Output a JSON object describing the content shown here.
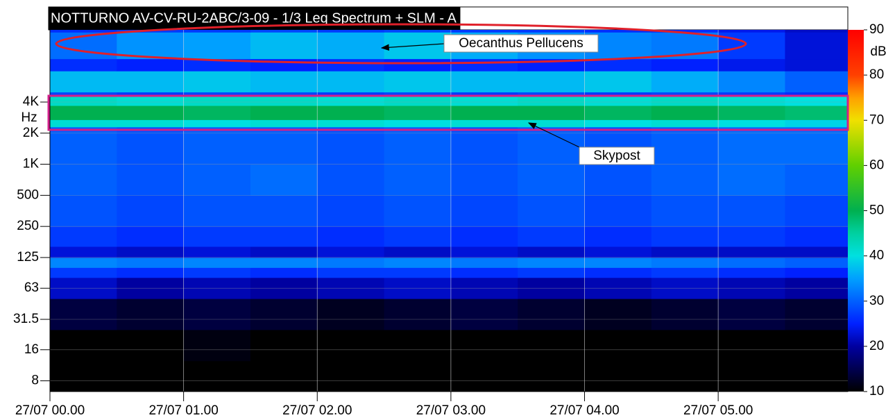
{
  "chart_data": {
    "type": "spectrogram",
    "title": "NOTTURNO AV-CV-RU-2ABC/3-09  - 1/3 Leq Spectrum + SLM - A",
    "y_label": "Hz",
    "colorbar_label": "dB",
    "y_scale": "log",
    "grid": true,
    "xlim": [
      0,
      5.97
    ],
    "xticks": [
      {
        "value": 0,
        "label": "27/07 00.00"
      },
      {
        "value": 1,
        "label": "27/07 01.00"
      },
      {
        "value": 2,
        "label": "27/07 02.00"
      },
      {
        "value": 3,
        "label": "27/07 03.00"
      },
      {
        "value": 4,
        "label": "27/07 04.00"
      },
      {
        "value": 5,
        "label": "27/07 05.00"
      }
    ],
    "ylim": [
      6.3,
      20000
    ],
    "yticks": [
      8,
      16,
      31.5,
      63,
      125,
      250,
      500,
      {
        "value": 1000,
        "label": "1K"
      },
      {
        "value": 2000,
        "label": "2K"
      },
      {
        "value": 4000,
        "label": "4K"
      }
    ],
    "clim": [
      10,
      90
    ],
    "cticks": [
      10,
      20,
      30,
      40,
      50,
      60,
      70,
      80,
      90
    ],
    "colorscale": [
      [
        10,
        "#000000"
      ],
      [
        20,
        "#0000a0"
      ],
      [
        25,
        "#0020ff"
      ],
      [
        30,
        "#0060ff"
      ],
      [
        35,
        "#00a0ff"
      ],
      [
        40,
        "#00e0e0"
      ],
      [
        45,
        "#00d0a0"
      ],
      [
        50,
        "#00b050"
      ],
      [
        60,
        "#60d000"
      ],
      [
        70,
        "#f0e000"
      ],
      [
        75,
        "#ffa000"
      ],
      [
        80,
        "#ff4000"
      ],
      [
        90,
        "#ff0000"
      ]
    ],
    "x": [
      0,
      0.5,
      1,
      1.5,
      2,
      2.5,
      3,
      3.5,
      4,
      4.5,
      5,
      5.5,
      5.97
    ],
    "bands": [
      6.3,
      12.5,
      25,
      50,
      80,
      100,
      125,
      160,
      250,
      500,
      1000,
      2300,
      2700,
      3700,
      4600,
      5000,
      8000,
      10500,
      19000,
      20000
    ],
    "z": [
      [
        10,
        10,
        10,
        10,
        10,
        10,
        10,
        10,
        10,
        10,
        10,
        10
      ],
      [
        10,
        10,
        11,
        10,
        10,
        10,
        10,
        10,
        10,
        10,
        10,
        10
      ],
      [
        14,
        13,
        14,
        13,
        12,
        13,
        14,
        13,
        12,
        13,
        14,
        13
      ],
      [
        22,
        20,
        21,
        20,
        21,
        22,
        21,
        20,
        21,
        22,
        21,
        20
      ],
      [
        27,
        26,
        27,
        26,
        27,
        27,
        26,
        27,
        26,
        27,
        26,
        25
      ],
      [
        33,
        32,
        33,
        33,
        32,
        33,
        32,
        33,
        33,
        32,
        31,
        30
      ],
      [
        23,
        22,
        23,
        22,
        23,
        22,
        23,
        22,
        23,
        22,
        22,
        22
      ],
      [
        27,
        26,
        27,
        27,
        26,
        27,
        26,
        27,
        26,
        27,
        27,
        26
      ],
      [
        29,
        28,
        29,
        29,
        28,
        29,
        28,
        29,
        28,
        29,
        29,
        28
      ],
      [
        30,
        29,
        30,
        31,
        29,
        30,
        29,
        30,
        29,
        30,
        31,
        30
      ],
      [
        30,
        29,
        30,
        30,
        29,
        30,
        29,
        30,
        29,
        30,
        31,
        31
      ],
      [
        41,
        41,
        40,
        41,
        41,
        40,
        41,
        41,
        40,
        41,
        40,
        39
      ],
      [
        50,
        50,
        49,
        50,
        50,
        49,
        50,
        50,
        49,
        50,
        49,
        48
      ],
      [
        42,
        41,
        42,
        42,
        41,
        42,
        41,
        42,
        41,
        42,
        41,
        40
      ],
      [
        28,
        27,
        28,
        28,
        27,
        28,
        27,
        28,
        27,
        28,
        27,
        26
      ],
      [
        37,
        37,
        38,
        37,
        37,
        38,
        37,
        37,
        38,
        36,
        33,
        30
      ],
      [
        26,
        25,
        26,
        25,
        26,
        25,
        26,
        25,
        26,
        25,
        24,
        23
      ],
      [
        31,
        34,
        35,
        37,
        36,
        38,
        36,
        34,
        33,
        32,
        27,
        23
      ],
      [
        26,
        27,
        27,
        28,
        27,
        28,
        27,
        27,
        26,
        26,
        24,
        22
      ]
    ],
    "annotations": [
      {
        "text": "Oecanthus Pellucens"
      },
      {
        "text": "Skypost"
      }
    ]
  }
}
